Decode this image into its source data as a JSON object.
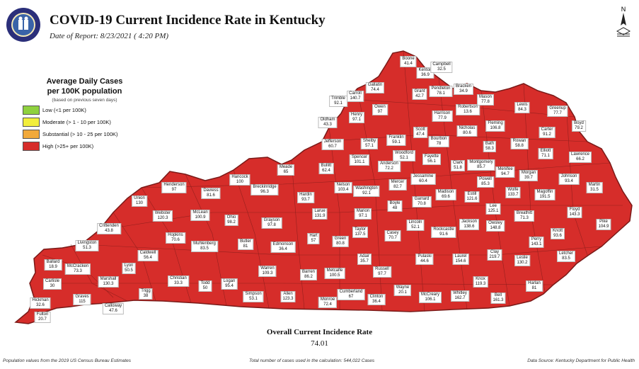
{
  "header": {
    "title": "COVID-19 Current Incidence Rate in Kentucky",
    "date": "Date of Report: 8/23/2021 ( 4:20 PM)"
  },
  "legend": {
    "title_line1": "Average Daily Cases",
    "title_line2": "per 100K population",
    "note": "(based on previous seven days)",
    "items": [
      {
        "label": "Low (<1 per 100K)",
        "color": "#8fd13f"
      },
      {
        "label": "Moderate (> 1 - 10 per 100K)",
        "color": "#f2ee3c"
      },
      {
        "label": "Substantial (> 10 - 25 per 100K)",
        "color": "#f2a93a"
      },
      {
        "label": "High (>25+ per 100K)",
        "color": "#d62d2a"
      }
    ]
  },
  "map_colors": {
    "high": "#d62d2a",
    "substantial": "#f2a93a",
    "border": "#7a1a18"
  },
  "counties": [
    {
      "name": "Boone",
      "value": "41.4"
    },
    {
      "name": "Kenton",
      "value": "36.9"
    },
    {
      "name": "Campbell",
      "value": "32.5"
    },
    {
      "name": "Gallatin",
      "value": "74.4"
    },
    {
      "name": "Grant",
      "value": "42.7"
    },
    {
      "name": "Pendleton",
      "value": "78.1"
    },
    {
      "name": "Bracken",
      "value": "34.9"
    },
    {
      "name": "Carroll",
      "value": "140.7"
    },
    {
      "name": "Trimble",
      "value": "92.1"
    },
    {
      "name": "Owen",
      "value": "97"
    },
    {
      "name": "Harrison",
      "value": "77.9"
    },
    {
      "name": "Robertson",
      "value": "13.6"
    },
    {
      "name": "Mason",
      "value": "77.8"
    },
    {
      "name": "Lewis",
      "value": "84.3"
    },
    {
      "name": "Greenup",
      "value": "77.7"
    },
    {
      "name": "Boyd",
      "value": "79.2"
    },
    {
      "name": "Oldham",
      "value": "43.3"
    },
    {
      "name": "Henry",
      "value": "97.1"
    },
    {
      "name": "Scott",
      "value": "47.4"
    },
    {
      "name": "Nicholas",
      "value": "80.6"
    },
    {
      "name": "Fleming",
      "value": "106.8"
    },
    {
      "name": "Carter",
      "value": "91.2"
    },
    {
      "name": "Jefferson",
      "value": "60.7"
    },
    {
      "name": "Shelby",
      "value": "57.1"
    },
    {
      "name": "Franklin",
      "value": "59.1"
    },
    {
      "name": "Bourbon",
      "value": "78"
    },
    {
      "name": "Bath",
      "value": "58.3"
    },
    {
      "name": "Rowan",
      "value": "58.8"
    },
    {
      "name": "Elliott",
      "value": "71.1"
    },
    {
      "name": "Lawrence",
      "value": "66.2"
    },
    {
      "name": "Bullitt",
      "value": "62.4"
    },
    {
      "name": "Spencer",
      "value": "101.1"
    },
    {
      "name": "Anderson",
      "value": "72.2"
    },
    {
      "name": "Woodford",
      "value": "52.1"
    },
    {
      "name": "Fayette",
      "value": "56.1"
    },
    {
      "name": "Clark",
      "value": "51.8"
    },
    {
      "name": "Montgomery",
      "value": "85.7"
    },
    {
      "name": "Menifee",
      "value": "94.7"
    },
    {
      "name": "Morgan",
      "value": "39.7"
    },
    {
      "name": "Johnson",
      "value": "93.4"
    },
    {
      "name": "Martin",
      "value": "31.5"
    },
    {
      "name": "Meade",
      "value": "65"
    },
    {
      "name": "Hancock",
      "value": "100"
    },
    {
      "name": "Henderson",
      "value": "97"
    },
    {
      "name": "Daviess",
      "value": "81.6"
    },
    {
      "name": "Breckinridge",
      "value": "96.3"
    },
    {
      "name": "Hardin",
      "value": "93.7"
    },
    {
      "name": "Nelson",
      "value": "103.4"
    },
    {
      "name": "Washington",
      "value": "92.1"
    },
    {
      "name": "Mercer",
      "value": "82.7"
    },
    {
      "name": "Jessamine",
      "value": "60.4"
    },
    {
      "name": "Madison",
      "value": "69.6"
    },
    {
      "name": "Powell",
      "value": "85.3"
    },
    {
      "name": "Wolfe",
      "value": "133.7"
    },
    {
      "name": "Magoffin",
      "value": "191.5"
    },
    {
      "name": "Floyd",
      "value": "143.3"
    },
    {
      "name": "Pike",
      "value": "104.9"
    },
    {
      "name": "Union",
      "value": "130"
    },
    {
      "name": "Webster",
      "value": "120.3"
    },
    {
      "name": "McLean",
      "value": "100.9"
    },
    {
      "name": "Ohio",
      "value": "98.2"
    },
    {
      "name": "Grayson",
      "value": "97.8"
    },
    {
      "name": "Larue",
      "value": "131.9"
    },
    {
      "name": "Marion",
      "value": "97.1"
    },
    {
      "name": "Boyle",
      "value": "48"
    },
    {
      "name": "Garrard",
      "value": "70.8"
    },
    {
      "name": "Estill",
      "value": "121.6"
    },
    {
      "name": "Lee",
      "value": "125.1"
    },
    {
      "name": "Breathitt",
      "value": "71.3"
    },
    {
      "name": "Knott",
      "value": "93.6"
    },
    {
      "name": "Crittenden",
      "value": "43.8"
    },
    {
      "name": "Hopkins",
      "value": "70.6"
    },
    {
      "name": "Muhlenberg",
      "value": "83.5"
    },
    {
      "name": "Butler",
      "value": "81"
    },
    {
      "name": "Edmonson",
      "value": "36.4"
    },
    {
      "name": "Hart",
      "value": "57"
    },
    {
      "name": "Green",
      "value": "80.8"
    },
    {
      "name": "Taylor",
      "value": "137.5"
    },
    {
      "name": "Casey",
      "value": "70.7"
    },
    {
      "name": "Lincoln",
      "value": "52.1"
    },
    {
      "name": "Rockcastle",
      "value": "91.6"
    },
    {
      "name": "Jackson",
      "value": "138.6"
    },
    {
      "name": "Owsley",
      "value": "148.8"
    },
    {
      "name": "Perry",
      "value": "143.1"
    },
    {
      "name": "Letcher",
      "value": "83.5"
    },
    {
      "name": "Livingston",
      "value": "51.3"
    },
    {
      "name": "Caldwell",
      "value": "56.4"
    },
    {
      "name": "Ballard",
      "value": "18.9"
    },
    {
      "name": "McCracken",
      "value": "73.3"
    },
    {
      "name": "Lyon",
      "value": "50.5"
    },
    {
      "name": "Christian",
      "value": "33.3"
    },
    {
      "name": "Todd",
      "value": "50"
    },
    {
      "name": "Logan",
      "value": "95.4"
    },
    {
      "name": "Warren",
      "value": "109.3"
    },
    {
      "name": "Barren",
      "value": "86.2"
    },
    {
      "name": "Metcalfe",
      "value": "100.5"
    },
    {
      "name": "Adair",
      "value": "35.7"
    },
    {
      "name": "Russell",
      "value": "97.7"
    },
    {
      "name": "Pulaski",
      "value": "44.6"
    },
    {
      "name": "Laurel",
      "value": "154.6"
    },
    {
      "name": "Clay",
      "value": "219.7"
    },
    {
      "name": "Leslie",
      "value": "130.2"
    },
    {
      "name": "Knox",
      "value": "119.3"
    },
    {
      "name": "Harlan",
      "value": "81"
    },
    {
      "name": "Carlisle",
      "value": "30"
    },
    {
      "name": "Marshall",
      "value": "130.3"
    },
    {
      "name": "Graves",
      "value": "115"
    },
    {
      "name": "Trigg",
      "value": "38"
    },
    {
      "name": "Simpson",
      "value": "53.1"
    },
    {
      "name": "Allen",
      "value": "123.3"
    },
    {
      "name": "Monroe",
      "value": "72.4"
    },
    {
      "name": "Cumberland",
      "value": "67"
    },
    {
      "name": "Clinton",
      "value": "36.4"
    },
    {
      "name": "Wayne",
      "value": "20.1"
    },
    {
      "name": "McCreary",
      "value": "106.1"
    },
    {
      "name": "Whitley",
      "value": "162.7"
    },
    {
      "name": "Bell",
      "value": "161.3"
    },
    {
      "name": "Hickman",
      "value": "32.6"
    },
    {
      "name": "Calloway",
      "value": "47.6"
    },
    {
      "name": "Fulton",
      "value": "20.7"
    }
  ],
  "overall": {
    "title": "Overall Current Incidence Rate",
    "value": "74.01"
  },
  "footer": {
    "left": "Population values from the 2019 US Census Bureau Estimates",
    "middle": "Total number of cases used in the calculation: 544,022 Cases",
    "right": "Data Source: Kentucky Department for Public Health"
  }
}
